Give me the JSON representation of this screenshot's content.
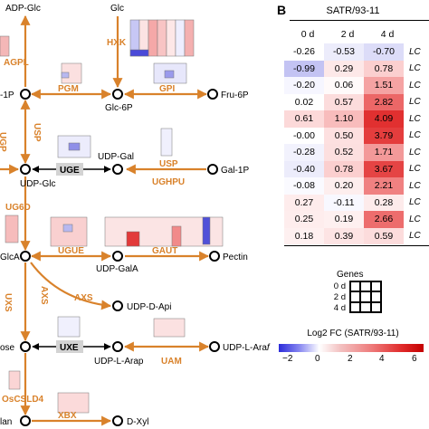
{
  "panel_b": {
    "letter": "B",
    "title": "SATR/93-11",
    "columns": [
      "0 d",
      "2 d",
      "4 d"
    ],
    "gene_prefix": "LC",
    "rows": [
      {
        "values": [
          "-0.26",
          "-0.53",
          "-0.70"
        ],
        "colors": [
          "#ffffff",
          "#ececfb",
          "#dcdcf8"
        ]
      },
      {
        "values": [
          "-0.99",
          "0.29",
          "0.78"
        ],
        "colors": [
          "#c3c3f3",
          "#fde8e8",
          "#fbcfcf"
        ]
      },
      {
        "values": [
          "-0.20",
          "0.06",
          "1.51"
        ],
        "colors": [
          "#f6f6ff",
          "#fffafa",
          "#f5a3a3"
        ]
      },
      {
        "values": [
          "0.02",
          "0.57",
          "2.82"
        ],
        "colors": [
          "#ffffff",
          "#fcdcdc",
          "#ec6767"
        ]
      },
      {
        "values": [
          "0.61",
          "1.10",
          "4.09"
        ],
        "colors": [
          "#fcd9d9",
          "#f8bcbc",
          "#e13030"
        ]
      },
      {
        "values": [
          "-0.00",
          "0.50",
          "3.79"
        ],
        "colors": [
          "#ffffff",
          "#fde0e0",
          "#e43d3d"
        ]
      },
      {
        "values": [
          "-0.28",
          "0.52",
          "1.71"
        ],
        "colors": [
          "#f2f2fd",
          "#fcdfdf",
          "#f39999"
        ]
      },
      {
        "values": [
          "-0.40",
          "0.78",
          "3.67"
        ],
        "colors": [
          "#ececfb",
          "#fbcfcf",
          "#e54444"
        ]
      },
      {
        "values": [
          "-0.08",
          "0.20",
          "2.21"
        ],
        "colors": [
          "#fafaff",
          "#fdeeee",
          "#f08181"
        ]
      },
      {
        "values": [
          "0.27",
          "-0.11",
          "0.28"
        ],
        "colors": [
          "#feecec",
          "#f8f8ff",
          "#fdebeb"
        ]
      },
      {
        "values": [
          "0.25",
          "0.19",
          "2.66"
        ],
        "colors": [
          "#feeded",
          "#fef0f0",
          "#ed6d6d"
        ]
      },
      {
        "values": [
          "0.18",
          "0.39",
          "0.59"
        ],
        "colors": [
          "#fef0f0",
          "#fde4e4",
          "#fcdcdc"
        ]
      }
    ],
    "legend": {
      "genes_title": "Genes",
      "rows": [
        "0 d",
        "2 d",
        "4 d"
      ]
    },
    "colorbar": {
      "title": "Log2 FC (SATR/93-11)",
      "ticks": [
        "−2",
        "0",
        "2",
        "4",
        "6"
      ]
    }
  },
  "panel_a": {
    "nodes": {
      "adp_glc": "ADP-Glc",
      "glc": "Glc",
      "glc1p": "-1P",
      "glc6p": "Glc-6P",
      "fru6p": "Fru-6P",
      "udp_glc": "UDP-Glc",
      "udp_gal": "UDP-Gal",
      "gal1p": "Gal-1P",
      "glca": "GlcA",
      "udp_gala": "UDP-GalA",
      "pectin": "Pectin",
      "udp_d_api": "UDP-D-Api",
      "ose": "ose",
      "udp_l_arap": "UDP-L-Arap",
      "udp_l_araf_prefix": "UDP-L-Ara",
      "udp_l_araf_suffix": "f",
      "lan": "lan",
      "d_xyl": "D-Xyl"
    },
    "enzymes": {
      "agpl": "AGPL",
      "hxk": "HXK",
      "pgm": "PGM",
      "gpi": "GPI",
      "ugp": "UGP",
      "usp_left": "USP",
      "uge": "UGE",
      "usp_right": "USP",
      "ughpu": "UGHPU",
      "ug6d": "UG6D",
      "ugue": "UGUE",
      "gaut": "GAUT",
      "uxs": "UXS",
      "axs_left": "AXS",
      "axs": "AXS",
      "uxe": "UXE",
      "uam": "UAM",
      "oscsld4": "OsCSLD4",
      "xbx": "XBX"
    },
    "colors": {
      "pathway": "#d9822b",
      "node": "#000000"
    }
  }
}
